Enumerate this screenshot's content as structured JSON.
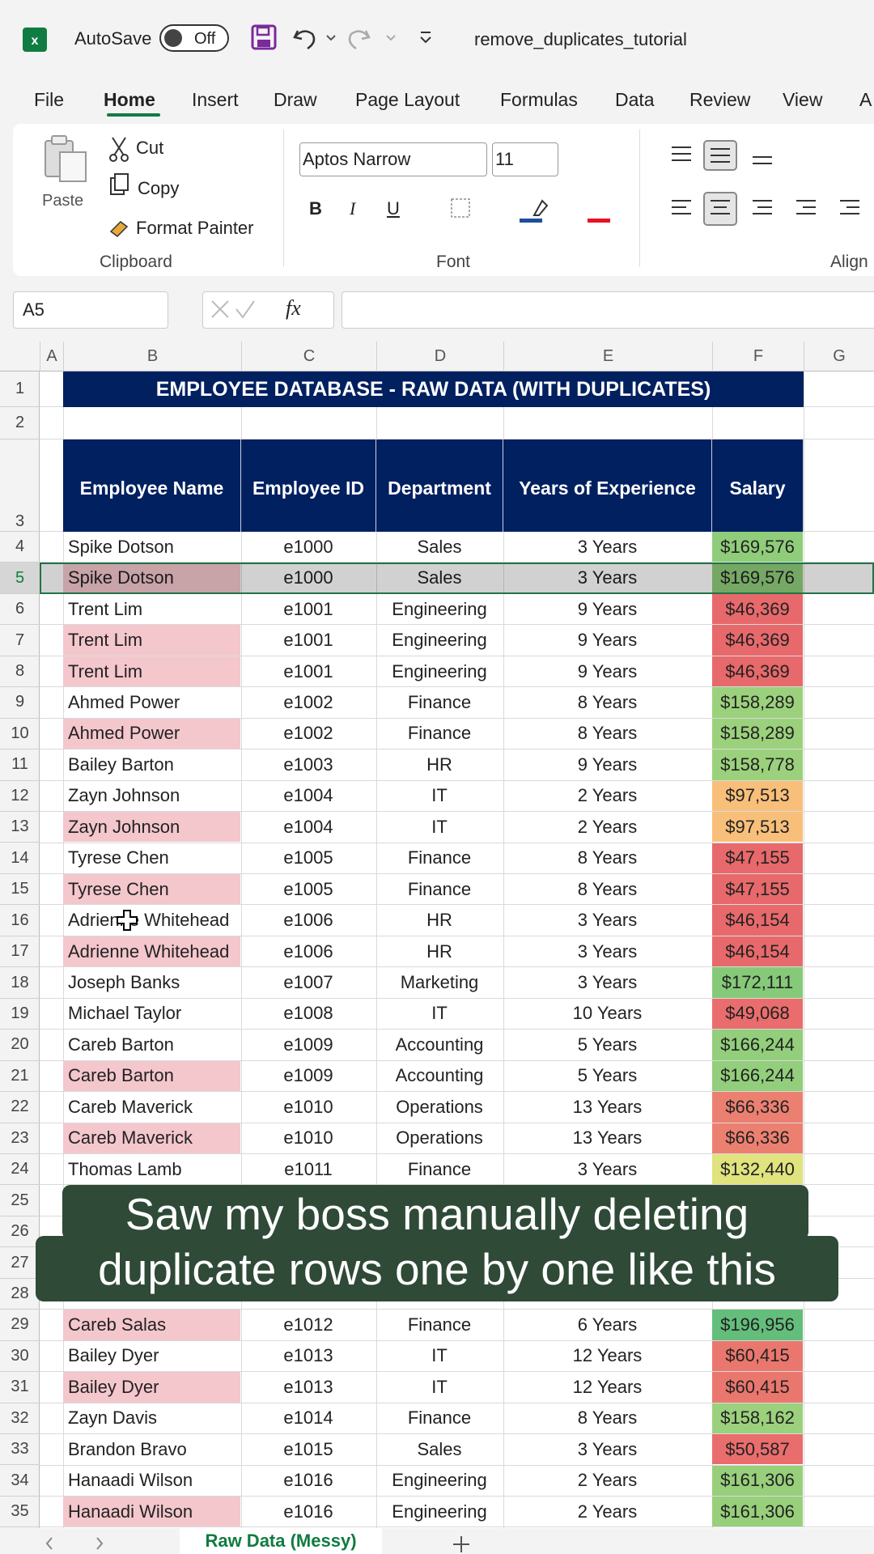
{
  "title_bar": {
    "autosave": "AutoSave",
    "toggle": "Off",
    "filename": "remove_duplicates_tutorial"
  },
  "tabs": [
    "File",
    "Home",
    "Insert",
    "Draw",
    "Page Layout",
    "Formulas",
    "Data",
    "Review",
    "View",
    "A"
  ],
  "ribbon": {
    "paste": "Paste",
    "cut": "Cut",
    "copy": "Copy",
    "format_painter": "Format Painter",
    "clipboard": "Clipboard",
    "font_name": "Aptos Narrow",
    "font_size": "11",
    "bold": "B",
    "italic": "I",
    "underline": "U",
    "font": "Font",
    "alignment": "Align"
  },
  "formula_bar": {
    "cell_ref": "A5",
    "fx": "fx"
  },
  "sheet": {
    "columns": [
      "A",
      "B",
      "C",
      "D",
      "E",
      "F",
      "G"
    ],
    "row_numbers": [
      "1",
      "2",
      "3",
      "4",
      "5",
      "6",
      "7",
      "8",
      "9",
      "10",
      "11",
      "12",
      "13",
      "14",
      "15",
      "16",
      "17",
      "18",
      "19",
      "20",
      "21",
      "22",
      "23",
      "24",
      "25",
      "26",
      "27",
      "28",
      "29",
      "30",
      "31",
      "32",
      "33",
      "34",
      "35"
    ],
    "title": "EMPLOYEE DATABASE - RAW DATA (WITH DUPLICATES)",
    "headers": [
      "Employee Name",
      "Employee ID",
      "Department",
      "Years of Experience",
      "Salary"
    ],
    "rows": [
      {
        "cells": [
          "Spike Dotson",
          "e1000",
          "Sales",
          "3 Years",
          "$169,576"
        ],
        "salary_fill": "#8fcd7b"
      },
      {
        "cells": [
          "Spike Dotson",
          "e1000",
          "Sales",
          "3 Years",
          "$169,576"
        ],
        "salary_fill": "#8fcd7b",
        "name_fill": "#f4c7cd",
        "selected": true
      },
      {
        "cells": [
          "Trent Lim",
          "e1001",
          "Engineering",
          "9 Years",
          "$46,369"
        ],
        "salary_fill": "#e8696b"
      },
      {
        "cells": [
          "Trent Lim",
          "e1001",
          "Engineering",
          "9 Years",
          "$46,369"
        ],
        "salary_fill": "#e8696b",
        "name_fill": "#f4c7cd"
      },
      {
        "cells": [
          "Trent Lim",
          "e1001",
          "Engineering",
          "9 Years",
          "$46,369"
        ],
        "salary_fill": "#e8696b",
        "name_fill": "#f4c7cd"
      },
      {
        "cells": [
          "Ahmed Power",
          "e1002",
          "Finance",
          "8 Years",
          "$158,289"
        ],
        "salary_fill": "#9bd17c"
      },
      {
        "cells": [
          "Ahmed Power",
          "e1002",
          "Finance",
          "8 Years",
          "$158,289"
        ],
        "salary_fill": "#9bd17c",
        "name_fill": "#f4c7cd"
      },
      {
        "cells": [
          "Bailey Barton",
          "e1003",
          "HR",
          "9 Years",
          "$158,778"
        ],
        "salary_fill": "#9bd17c"
      },
      {
        "cells": [
          "Zayn Johnson",
          "e1004",
          "IT",
          "2 Years",
          "$97,513"
        ],
        "salary_fill": "#f8bf7a"
      },
      {
        "cells": [
          "Zayn Johnson",
          "e1004",
          "IT",
          "2 Years",
          "$97,513"
        ],
        "salary_fill": "#f8bf7a",
        "name_fill": "#f4c7cd"
      },
      {
        "cells": [
          "Tyrese Chen",
          "e1005",
          "Finance",
          "8 Years",
          "$47,155"
        ],
        "salary_fill": "#e8696b"
      },
      {
        "cells": [
          "Tyrese Chen",
          "e1005",
          "Finance",
          "8 Years",
          "$47,155"
        ],
        "salary_fill": "#e8696b",
        "name_fill": "#f4c7cd"
      },
      {
        "cells": [
          "Adrienne Whitehead",
          "e1006",
          "HR",
          "3 Years",
          "$46,154"
        ],
        "salary_fill": "#e8696b"
      },
      {
        "cells": [
          "Adrienne Whitehead",
          "e1006",
          "HR",
          "3 Years",
          "$46,154"
        ],
        "salary_fill": "#e8696b",
        "name_fill": "#f4c7cd"
      },
      {
        "cells": [
          "Joseph Banks",
          "e1007",
          "Marketing",
          "3 Years",
          "$172,111"
        ],
        "salary_fill": "#86ca79"
      },
      {
        "cells": [
          "Michael Taylor",
          "e1008",
          "IT",
          "10 Years",
          "$49,068"
        ],
        "salary_fill": "#e96d6c"
      },
      {
        "cells": [
          "Careb Barton",
          "e1009",
          "Accounting",
          "5 Years",
          "$166,244"
        ],
        "salary_fill": "#92ce7b"
      },
      {
        "cells": [
          "Careb Barton",
          "e1009",
          "Accounting",
          "5 Years",
          "$166,244"
        ],
        "salary_fill": "#92ce7b",
        "name_fill": "#f4c7cd"
      },
      {
        "cells": [
          "Careb Maverick",
          "e1010",
          "Operations",
          "13 Years",
          "$66,336"
        ],
        "salary_fill": "#ec8070"
      },
      {
        "cells": [
          "Careb Maverick",
          "e1010",
          "Operations",
          "13 Years",
          "$66,336"
        ],
        "salary_fill": "#ec8070",
        "name_fill": "#f4c7cd"
      },
      {
        "cells": [
          "Thomas Lamb",
          "e1011",
          "Finance",
          "3 Years",
          "$132,440"
        ],
        "salary_fill": "#e0e37e"
      },
      null,
      null,
      null,
      null,
      {
        "cells": [
          "Careb Salas",
          "e1012",
          "Finance",
          "6 Years",
          "$196,956"
        ],
        "salary_fill": "#63be7b",
        "name_fill": "#f4c7cd"
      },
      {
        "cells": [
          "Bailey Dyer",
          "e1013",
          "IT",
          "12 Years",
          "$60,415"
        ],
        "salary_fill": "#ea776e"
      },
      {
        "cells": [
          "Bailey Dyer",
          "e1013",
          "IT",
          "12 Years",
          "$60,415"
        ],
        "salary_fill": "#ea776e",
        "name_fill": "#f4c7cd"
      },
      {
        "cells": [
          "Zayn Davis",
          "e1014",
          "Finance",
          "8 Years",
          "$158,162"
        ],
        "salary_fill": "#9bd17c"
      },
      {
        "cells": [
          "Brandon Bravo",
          "e1015",
          "Sales",
          "3 Years",
          "$50,587"
        ],
        "salary_fill": "#e96d6c"
      },
      {
        "cells": [
          "Hanaadi Wilson",
          "e1016",
          "Engineering",
          "2 Years",
          "$161,306"
        ],
        "salary_fill": "#98cf7b"
      },
      {
        "cells": [
          "Hanaadi Wilson",
          "e1016",
          "Engineering",
          "2 Years",
          "$161,306"
        ],
        "salary_fill": "#98cf7b",
        "name_fill": "#f4c7cd"
      }
    ]
  },
  "caption": [
    "Saw my boss manually deleting",
    "duplicate rows one by one like this"
  ],
  "sheet_tab": "Raw Data (Messy)"
}
